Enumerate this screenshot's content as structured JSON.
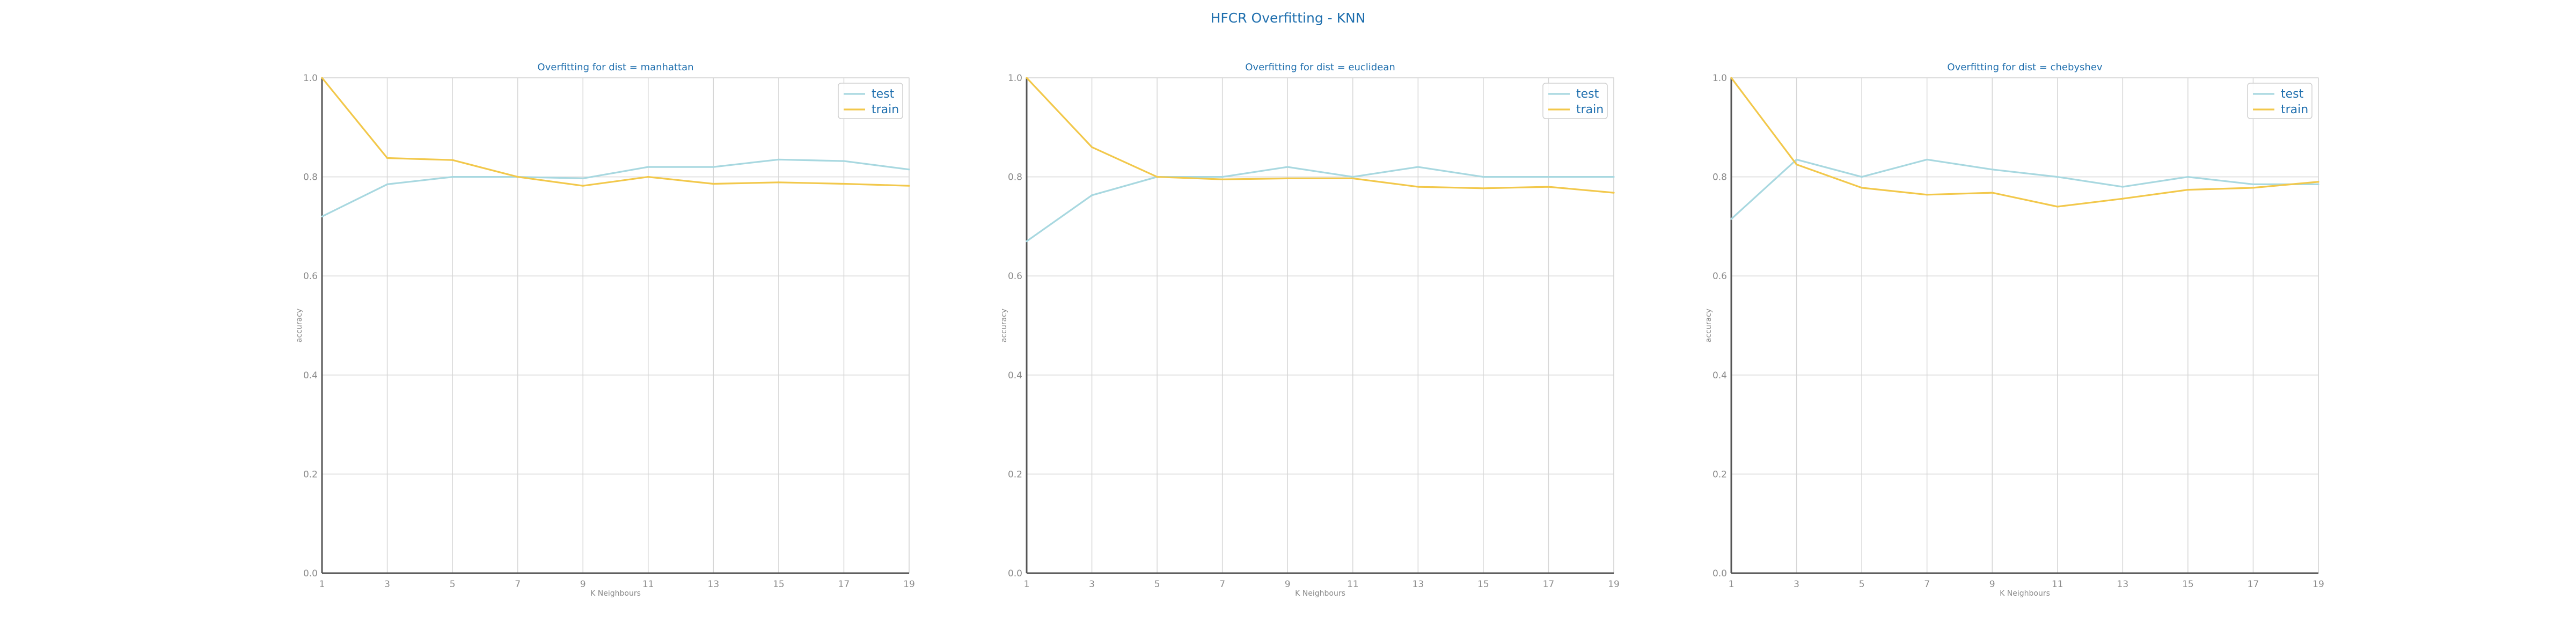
{
  "figure": {
    "suptitle": "HFCR Overfitting - KNN",
    "colors": {
      "title": "#1f6fae",
      "test": "#a8d8e0",
      "train": "#f2c84b",
      "grid": "#d6d6d6",
      "axis": "#555555",
      "tick_label": "#8a8a8a"
    }
  },
  "chart_data": [
    {
      "type": "line",
      "title": "Overfitting for dist = manhattan",
      "xlabel": "K Neighbours",
      "ylabel": "accuracy",
      "x": [
        1,
        3,
        5,
        7,
        9,
        11,
        13,
        15,
        17,
        19
      ],
      "xticks": [
        "1",
        "3",
        "5",
        "7",
        "9",
        "11",
        "13",
        "15",
        "17",
        "19"
      ],
      "yticks": [
        "0.0",
        "0.2",
        "0.4",
        "0.6",
        "0.8",
        "1.0"
      ],
      "ylim": [
        0,
        1
      ],
      "grid": true,
      "legend": "top-right",
      "series": [
        {
          "name": "test",
          "color": "#a8d8e0",
          "values": [
            0.72,
            0.785,
            0.8,
            0.8,
            0.797,
            0.82,
            0.82,
            0.835,
            0.832,
            0.815
          ]
        },
        {
          "name": "train",
          "color": "#f2c84b",
          "values": [
            1.0,
            0.838,
            0.834,
            0.8,
            0.782,
            0.8,
            0.786,
            0.789,
            0.786,
            0.782
          ]
        }
      ]
    },
    {
      "type": "line",
      "title": "Overfitting for dist = euclidean",
      "xlabel": "K Neighbours",
      "ylabel": "accuracy",
      "x": [
        1,
        3,
        5,
        7,
        9,
        11,
        13,
        15,
        17,
        19
      ],
      "xticks": [
        "1",
        "3",
        "5",
        "7",
        "9",
        "11",
        "13",
        "15",
        "17",
        "19"
      ],
      "yticks": [
        "0.0",
        "0.2",
        "0.4",
        "0.6",
        "0.8",
        "1.0"
      ],
      "ylim": [
        0,
        1
      ],
      "grid": true,
      "legend": "top-right",
      "series": [
        {
          "name": "test",
          "color": "#a8d8e0",
          "values": [
            0.67,
            0.763,
            0.8,
            0.8,
            0.82,
            0.8,
            0.82,
            0.8,
            0.8,
            0.8
          ]
        },
        {
          "name": "train",
          "color": "#f2c84b",
          "values": [
            1.0,
            0.86,
            0.8,
            0.795,
            0.797,
            0.797,
            0.78,
            0.777,
            0.78,
            0.768
          ]
        }
      ]
    },
    {
      "type": "line",
      "title": "Overfitting for dist = chebyshev",
      "xlabel": "K Neighbours",
      "ylabel": "accuracy",
      "x": [
        1,
        3,
        5,
        7,
        9,
        11,
        13,
        15,
        17,
        19
      ],
      "xticks": [
        "1",
        "3",
        "5",
        "7",
        "9",
        "11",
        "13",
        "15",
        "17",
        "19"
      ],
      "yticks": [
        "0.0",
        "0.2",
        "0.4",
        "0.6",
        "0.8",
        "1.0"
      ],
      "ylim": [
        0,
        1
      ],
      "grid": true,
      "legend": "top-right",
      "series": [
        {
          "name": "test",
          "color": "#a8d8e0",
          "values": [
            0.715,
            0.835,
            0.8,
            0.835,
            0.815,
            0.8,
            0.78,
            0.8,
            0.785,
            0.785
          ]
        },
        {
          "name": "train",
          "color": "#f2c84b",
          "values": [
            1.0,
            0.825,
            0.778,
            0.764,
            0.768,
            0.74,
            0.756,
            0.774,
            0.778,
            0.79
          ]
        }
      ]
    }
  ]
}
